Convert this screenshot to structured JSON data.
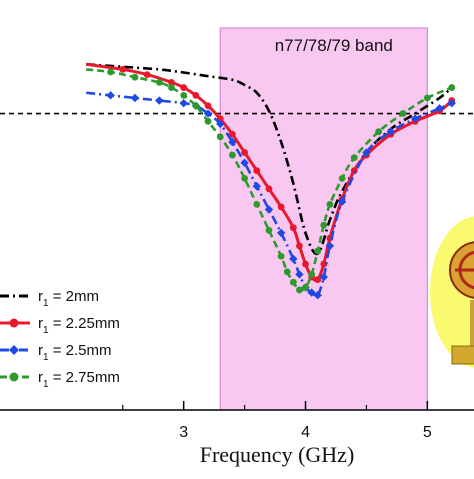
{
  "chart_data": {
    "type": "line",
    "xlabel": "Frequency (GHz)",
    "ylabel": "",
    "xlim": [
      2.2,
      5.2
    ],
    "x_ticks": [
      "3",
      "4",
      "5"
    ],
    "ylim": [
      -50,
      0
    ],
    "reference_line": -11.5,
    "band": {
      "label": "n77/78/79 band",
      "range": [
        3.3,
        5.0
      ],
      "color": "#f8c8f0"
    },
    "legend_placement": "bottom-left",
    "series": [
      {
        "name": "r",
        "sub": "1",
        "value": " = 2mm",
        "color": "#000000",
        "dash": "dashdot",
        "marker": "none",
        "x": [
          2.2,
          2.5,
          2.8,
          3.0,
          3.2,
          3.4,
          3.5,
          3.6,
          3.7,
          3.8,
          3.9,
          4.0,
          4.1,
          4.2,
          4.3,
          4.5,
          4.7,
          4.9,
          5.1,
          5.2
        ],
        "y": [
          -2.0,
          -2.5,
          -3.0,
          -3.6,
          -4.3,
          -5.0,
          -6.0,
          -7.5,
          -11.0,
          -17.0,
          -25.0,
          -34.5,
          -38.5,
          -32.0,
          -26.5,
          -19.0,
          -14.5,
          -11.5,
          -8.5,
          -6.5
        ]
      },
      {
        "name": "r",
        "sub": "1",
        "value": " = 2.25mm",
        "color": "#e8192c",
        "dash": "solid",
        "marker": "circle",
        "x": [
          2.2,
          2.5,
          2.7,
          2.9,
          3.0,
          3.1,
          3.2,
          3.3,
          3.4,
          3.5,
          3.6,
          3.7,
          3.8,
          3.9,
          3.95,
          4.0,
          4.05,
          4.1,
          4.15,
          4.2,
          4.3,
          4.4,
          4.5,
          4.7,
          4.9,
          5.1,
          5.2
        ],
        "y": [
          -2.0,
          -3.0,
          -4.0,
          -5.5,
          -6.5,
          -8.0,
          -10.0,
          -12.5,
          -15.5,
          -19.0,
          -22.5,
          -26.0,
          -29.5,
          -33.5,
          -37.0,
          -40.5,
          -43.0,
          -43.5,
          -40.5,
          -35.5,
          -28.0,
          -22.5,
          -19.5,
          -15.5,
          -13.0,
          -11.0,
          -9.0
        ]
      },
      {
        "name": "r",
        "sub": "1",
        "value": " = 2.5mm",
        "color": "#1f48e6",
        "dash": "dashdot",
        "marker": "diamond",
        "x": [
          2.2,
          2.4,
          2.6,
          2.8,
          3.0,
          3.1,
          3.2,
          3.3,
          3.4,
          3.5,
          3.6,
          3.7,
          3.8,
          3.9,
          3.95,
          4.0,
          4.05,
          4.1,
          4.15,
          4.2,
          4.3,
          4.5,
          4.7,
          4.9,
          5.1,
          5.2
        ],
        "y": [
          -7.5,
          -8.0,
          -8.5,
          -9.0,
          -9.5,
          -10.0,
          -11.5,
          -13.5,
          -17.0,
          -21.0,
          -25.5,
          -30.0,
          -34.5,
          -39.5,
          -42.5,
          -45.0,
          -46.0,
          -46.5,
          -43.0,
          -37.0,
          -28.5,
          -19.0,
          -15.0,
          -12.5,
          -10.5,
          -9.5
        ]
      },
      {
        "name": "r",
        "sub": "1",
        "value": " = 2.75mm",
        "color": "#2e9a2e",
        "dash": "dashed",
        "marker": "circle",
        "x": [
          2.2,
          2.4,
          2.6,
          2.8,
          2.9,
          3.0,
          3.1,
          3.2,
          3.3,
          3.4,
          3.5,
          3.6,
          3.7,
          3.8,
          3.85,
          3.9,
          3.95,
          4.0,
          4.05,
          4.1,
          4.15,
          4.2,
          4.3,
          4.4,
          4.6,
          4.8,
          5.0,
          5.2
        ],
        "y": [
          -3.0,
          -3.5,
          -4.5,
          -5.5,
          -6.5,
          -8.0,
          -10.0,
          -13.0,
          -16.0,
          -19.5,
          -24.0,
          -29.0,
          -34.0,
          -39.0,
          -42.0,
          -44.0,
          -45.5,
          -45.0,
          -42.5,
          -38.0,
          -33.0,
          -29.0,
          -24.0,
          -20.0,
          -15.0,
          -11.5,
          -8.5,
          -6.5
        ]
      }
    ]
  }
}
